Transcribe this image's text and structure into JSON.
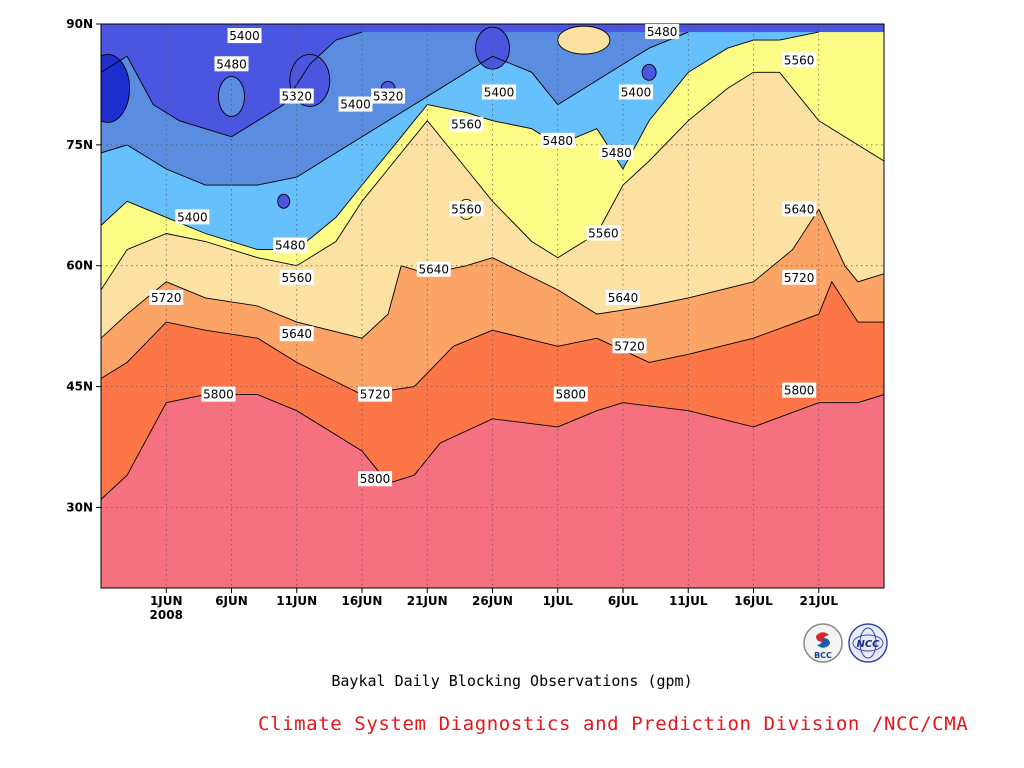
{
  "chart_data": {
    "type": "heatmap",
    "subtype": "filled-contour",
    "title": "Baykal Daily Blocking Observations (gpm)",
    "x": {
      "unit": "date",
      "range": [
        "2008-05-27",
        "2008-07-25"
      ],
      "ticks": [
        "1JUN",
        "6JUN",
        "11JUN",
        "16JUN",
        "21JUN",
        "26JUN",
        "1JUL",
        "6JUL",
        "11JUL",
        "16JUL",
        "21JUL"
      ],
      "tick_days": [
        5,
        10,
        15,
        20,
        25,
        30,
        35,
        40,
        45,
        50,
        55
      ],
      "year_label": "2008"
    },
    "y": {
      "unit": "degrees latitude",
      "range": [
        20,
        90
      ],
      "ticks": [
        "30N",
        "45N",
        "60N",
        "75N",
        "90N"
      ],
      "tick_values": [
        30,
        45,
        60,
        75,
        90
      ]
    },
    "grid": "dotted",
    "levels": [
      5320,
      5400,
      5480,
      5560,
      5640,
      5720,
      5800
    ],
    "colors": {
      "below_5320": "#1e2fd0",
      "5320_5400": "#4a55e0",
      "5400_5480": "#5a8de0",
      "5480_5560": "#66c0fb",
      "5560_5640": "#fcfc86",
      "5640_5720": "#fde1a2",
      "5720_5800": "#fca466",
      "5800_5880": "#fc7648",
      "above_5880": "#f5717f"
    },
    "contours": [
      {
        "level": 5800,
        "points": [
          [
            0,
            31
          ],
          [
            2,
            34
          ],
          [
            5,
            43
          ],
          [
            8,
            44
          ],
          [
            12,
            44
          ],
          [
            15,
            42
          ],
          [
            20,
            37
          ],
          [
            22,
            33
          ],
          [
            24,
            34
          ],
          [
            26,
            38
          ],
          [
            30,
            41
          ],
          [
            35,
            40
          ],
          [
            38,
            42
          ],
          [
            40,
            43
          ],
          [
            45,
            42
          ],
          [
            50,
            40
          ],
          [
            55,
            43
          ],
          [
            58,
            43
          ],
          [
            60,
            44
          ]
        ]
      },
      {
        "level": 5720,
        "points": [
          [
            0,
            46
          ],
          [
            2,
            48
          ],
          [
            5,
            53
          ],
          [
            8,
            52
          ],
          [
            12,
            51
          ],
          [
            15,
            48
          ],
          [
            20,
            44
          ],
          [
            24,
            45
          ],
          [
            27,
            50
          ],
          [
            30,
            52
          ],
          [
            35,
            50
          ],
          [
            38,
            51
          ],
          [
            42,
            48
          ],
          [
            45,
            49
          ],
          [
            50,
            51
          ],
          [
            55,
            54
          ],
          [
            56,
            58
          ],
          [
            58,
            53
          ],
          [
            60,
            53
          ]
        ]
      },
      {
        "level": 5640,
        "points": [
          [
            0,
            51
          ],
          [
            2,
            54
          ],
          [
            5,
            58
          ],
          [
            8,
            56
          ],
          [
            12,
            55
          ],
          [
            15,
            53
          ],
          [
            20,
            51
          ],
          [
            22,
            54
          ],
          [
            23,
            60
          ],
          [
            25,
            59
          ],
          [
            28,
            60
          ],
          [
            30,
            61
          ],
          [
            35,
            57
          ],
          [
            38,
            54
          ],
          [
            42,
            55
          ],
          [
            45,
            56
          ],
          [
            50,
            58
          ],
          [
            53,
            62
          ],
          [
            55,
            67
          ],
          [
            57,
            60
          ],
          [
            58,
            58
          ],
          [
            60,
            59
          ]
        ]
      },
      {
        "level": 5560,
        "points": [
          [
            0,
            57
          ],
          [
            2,
            62
          ],
          [
            5,
            64
          ],
          [
            8,
            63
          ],
          [
            12,
            61
          ],
          [
            15,
            60
          ],
          [
            18,
            63
          ],
          [
            20,
            68
          ],
          [
            23,
            74
          ],
          [
            25,
            78
          ],
          [
            28,
            72
          ],
          [
            30,
            68
          ],
          [
            33,
            63
          ],
          [
            35,
            61
          ],
          [
            38,
            64
          ],
          [
            40,
            70
          ],
          [
            42,
            73
          ],
          [
            45,
            78
          ],
          [
            48,
            82
          ],
          [
            50,
            84
          ],
          [
            52,
            84
          ],
          [
            55,
            78
          ],
          [
            58,
            75
          ],
          [
            60,
            73
          ]
        ]
      },
      {
        "level": 5480,
        "points": [
          [
            0,
            65
          ],
          [
            2,
            68
          ],
          [
            5,
            66
          ],
          [
            8,
            64
          ],
          [
            12,
            62
          ],
          [
            15,
            62
          ],
          [
            18,
            66
          ],
          [
            20,
            70
          ],
          [
            23,
            76
          ],
          [
            25,
            80
          ],
          [
            28,
            79
          ],
          [
            30,
            78
          ],
          [
            33,
            77
          ],
          [
            35,
            75
          ],
          [
            38,
            77
          ],
          [
            40,
            72
          ],
          [
            42,
            78
          ],
          [
            45,
            84
          ],
          [
            48,
            87
          ],
          [
            50,
            88
          ],
          [
            52,
            88
          ],
          [
            55,
            89
          ]
        ]
      },
      {
        "level": 5400,
        "points": [
          [
            0,
            74
          ],
          [
            2,
            75
          ],
          [
            5,
            72
          ],
          [
            8,
            70
          ],
          [
            12,
            70
          ],
          [
            15,
            71
          ],
          [
            18,
            74
          ],
          [
            20,
            76
          ],
          [
            23,
            79
          ],
          [
            25,
            81
          ],
          [
            28,
            84
          ],
          [
            30,
            86
          ],
          [
            33,
            84
          ],
          [
            35,
            80
          ],
          [
            38,
            83
          ],
          [
            40,
            85
          ],
          [
            42,
            87
          ],
          [
            45,
            89
          ]
        ]
      },
      {
        "level": 5320,
        "points": [
          [
            0,
            84
          ],
          [
            2,
            86
          ],
          [
            4,
            80
          ],
          [
            6,
            78
          ],
          [
            10,
            76
          ],
          [
            12,
            78
          ],
          [
            14,
            80
          ],
          [
            16,
            85
          ],
          [
            18,
            88
          ],
          [
            20,
            89
          ]
        ]
      }
    ],
    "contour_labels": [
      {
        "text": "5400",
        "x": 11,
        "y": 88.5
      },
      {
        "text": "5480",
        "x": 10,
        "y": 85
      },
      {
        "text": "5320",
        "x": 15,
        "y": 81
      },
      {
        "text": "5400",
        "x": 19.5,
        "y": 80
      },
      {
        "text": "5320",
        "x": 22,
        "y": 81
      },
      {
        "text": "5400",
        "x": 7,
        "y": 66
      },
      {
        "text": "5480",
        "x": 14.5,
        "y": 62.5
      },
      {
        "text": "5560",
        "x": 15,
        "y": 58.5
      },
      {
        "text": "5640",
        "x": 15,
        "y": 51.5
      },
      {
        "text": "5720",
        "x": 5,
        "y": 56
      },
      {
        "text": "5800",
        "x": 9,
        "y": 44
      },
      {
        "text": "5720",
        "x": 21,
        "y": 44
      },
      {
        "text": "5800",
        "x": 21,
        "y": 33.5
      },
      {
        "text": "5640",
        "x": 25.5,
        "y": 59.5
      },
      {
        "text": "5560",
        "x": 28,
        "y": 77.5
      },
      {
        "text": "5400",
        "x": 30.5,
        "y": 81.5
      },
      {
        "text": "5560",
        "x": 28,
        "y": 67
      },
      {
        "text": "5480",
        "x": 35,
        "y": 75.5
      },
      {
        "text": "5560",
        "x": 38.5,
        "y": 64
      },
      {
        "text": "5480",
        "x": 39.5,
        "y": 74
      },
      {
        "text": "5400",
        "x": 41,
        "y": 81.5
      },
      {
        "text": "5480",
        "x": 43,
        "y": 89
      },
      {
        "text": "5560",
        "x": 53.5,
        "y": 85.5
      },
      {
        "text": "5640",
        "x": 40,
        "y": 56
      },
      {
        "text": "5720",
        "x": 40.5,
        "y": 50
      },
      {
        "text": "5800",
        "x": 36,
        "y": 44
      },
      {
        "text": "5720",
        "x": 53.5,
        "y": 58.5
      },
      {
        "text": "5640",
        "x": 53.5,
        "y": 67
      },
      {
        "text": "5800",
        "x": 53.5,
        "y": 44.5
      }
    ],
    "legend": "none"
  },
  "title": "Baykal Daily Blocking Observations (gpm)",
  "credit": "Climate System Diagnostics and Prediction Division /NCC/CMA",
  "logos": [
    {
      "name": "bcc-logo-icon",
      "text": "BCC"
    },
    {
      "name": "ncc-logo-icon",
      "text": "NCC"
    }
  ]
}
